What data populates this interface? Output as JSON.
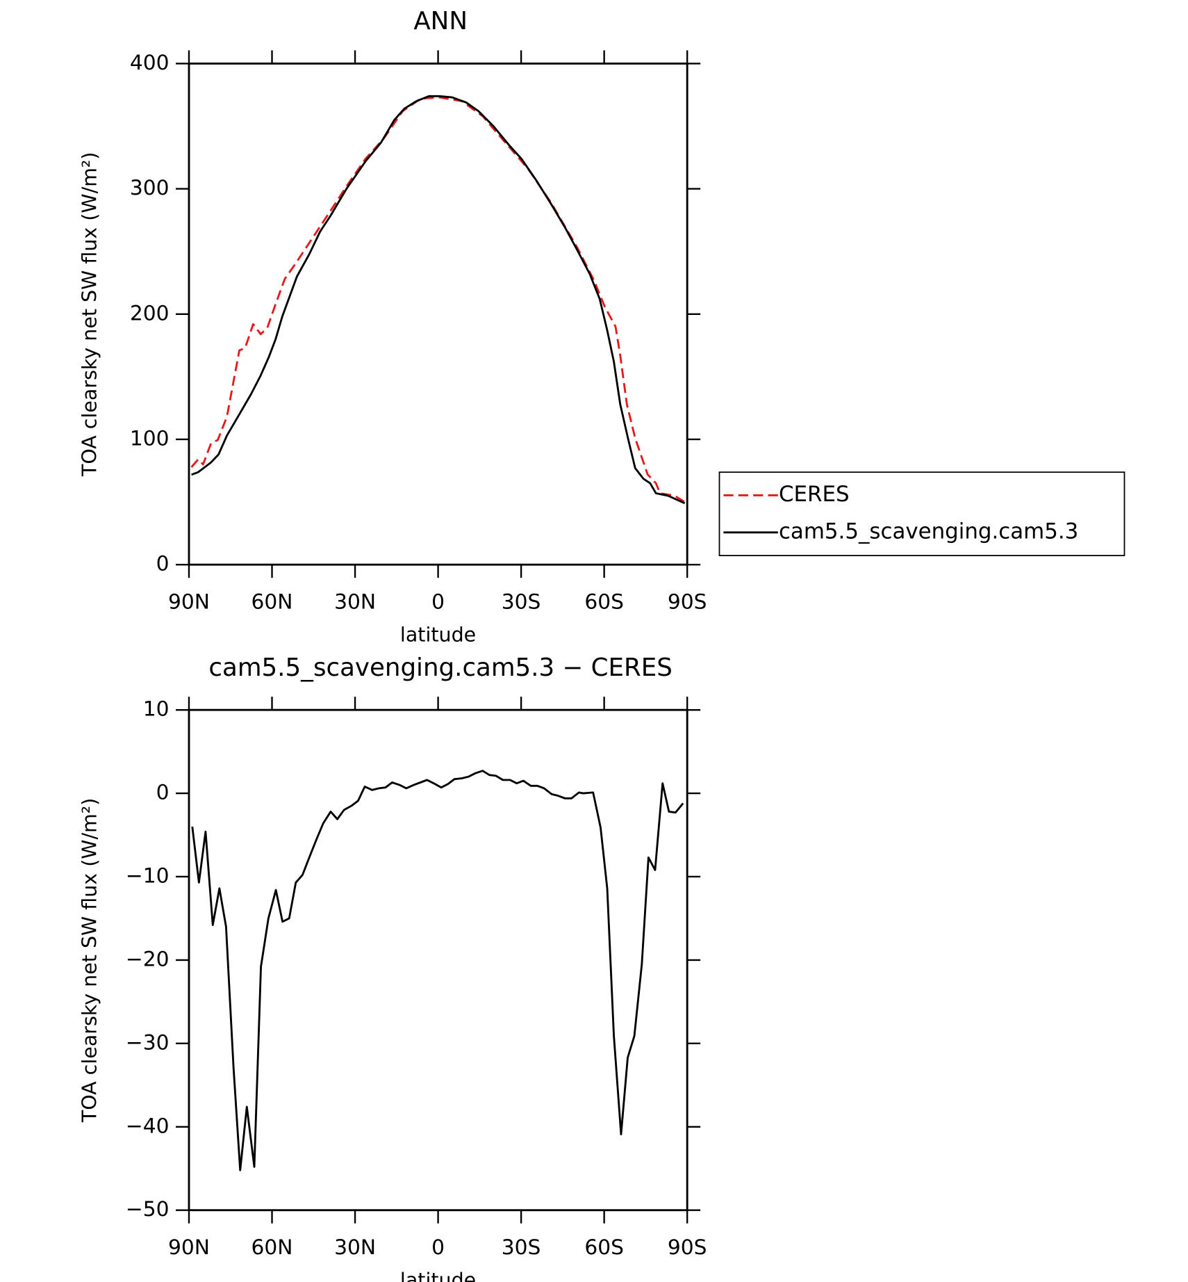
{
  "chart_data": [
    {
      "type": "line",
      "title": "ANN",
      "xlabel": "latitude",
      "ylabel": "TOA clearsky net SW flux (W/m²)",
      "xlim": [
        90,
        -90
      ],
      "xticks": [
        {
          "value": 90,
          "label": "90N"
        },
        {
          "value": 60,
          "label": "60N"
        },
        {
          "value": 30,
          "label": "30N"
        },
        0,
        {
          "value": -30,
          "label": "30S"
        },
        {
          "value": -60,
          "label": "60S"
        },
        {
          "value": -90,
          "label": "90S"
        }
      ],
      "ylim": [
        0,
        400
      ],
      "yticks": [
        0,
        100,
        200,
        300,
        400
      ],
      "legend": "right",
      "series": [
        {
          "name": "CERES",
          "color": "#e41a1c",
          "dash": "dashed",
          "x": [
            89.1,
            86.7,
            84.9,
            82.0,
            79.6,
            76.3,
            71.8,
            69.7,
            66.8,
            64.1,
            61.7,
            58.7,
            55.4,
            51.6,
            47.4,
            42.6,
            38.4,
            33.1,
            26.2,
            19.7,
            12.8,
            6.3,
            -0.6,
            -8.6,
            -16.1,
            -23.5,
            -32.5,
            -40.8,
            -50.3,
            -56.3,
            -60.2,
            -64.1,
            -65.8,
            -68.2,
            -71.2,
            -75.7,
            -78.7,
            -80.2,
            -85.5,
            -89.1
          ],
          "values": [
            77.8,
            84,
            80,
            97,
            99.5,
            118,
            171,
            173,
            192,
            184,
            189,
            208,
            228,
            240,
            254,
            270,
            284,
            302,
            324,
            340,
            362,
            372,
            373,
            370,
            358,
            339,
            316,
            289,
            253,
            227,
            206,
            190,
            167,
            128,
            101,
            72,
            65,
            57,
            55,
            50
          ]
        },
        {
          "name": "cam5.5_scavenging.cam5.3",
          "color": "#000000",
          "dash": "solid",
          "x": [
            89.1,
            86.7,
            84.3,
            82.0,
            79.3,
            76.3,
            71.8,
            67.6,
            64.1,
            61.1,
            58.7,
            56.3,
            51.0,
            46.5,
            42.6,
            39.0,
            33.1,
            26.2,
            20.6,
            15.8,
            12.2,
            7.8,
            3.3,
            -0.3,
            -5.1,
            -10.1,
            -14.6,
            -20.0,
            -25.6,
            -30.1,
            -35.4,
            -40.8,
            -45.9,
            -50.3,
            -54.8,
            -58.4,
            -61.1,
            -63.5,
            -65.8,
            -68.8,
            -71.2,
            -74.2,
            -76.6,
            -78.7,
            -83.1,
            -89.1
          ],
          "values": [
            71.8,
            73.8,
            77.8,
            81.7,
            88,
            103,
            120,
            136,
            151,
            166,
            180,
            198,
            230,
            248,
            266,
            278,
            300,
            322,
            337,
            355,
            364,
            370,
            374,
            374,
            373,
            369,
            362,
            350,
            335,
            324,
            307,
            288,
            269,
            251,
            232,
            212,
            187,
            162,
            128,
            99,
            77,
            68.5,
            65,
            57,
            55,
            49
          ]
        }
      ]
    },
    {
      "type": "line",
      "title": "cam5.5_scavenging.cam5.3 − CERES",
      "xlabel": "latitude",
      "ylabel": "TOA clearsky net SW flux (W/m²)",
      "xlim": [
        90,
        -90
      ],
      "xticks": [
        {
          "value": 90,
          "label": "90N"
        },
        {
          "value": 60,
          "label": "60N"
        },
        {
          "value": 30,
          "label": "30N"
        },
        0,
        {
          "value": -30,
          "label": "30S"
        },
        {
          "value": -60,
          "label": "60S"
        },
        {
          "value": -90,
          "label": "90S"
        }
      ],
      "ylim": [
        -50,
        10
      ],
      "yticks": [
        10,
        0,
        {
          "value": -10,
          "label": "−10"
        },
        {
          "value": -20,
          "label": "−20"
        },
        {
          "value": -30,
          "label": "−30"
        },
        {
          "value": -40,
          "label": "−40"
        },
        {
          "value": -50,
          "label": "−50"
        }
      ],
      "series": [
        {
          "color": "#000000",
          "dash": "solid",
          "x": [
            88.8,
            86.4,
            84.0,
            81.4,
            79.0,
            76.6,
            73.9,
            71.5,
            69.1,
            66.4,
            64.0,
            61.3,
            58.6,
            56.2,
            53.8,
            51.4,
            49.0,
            46.3,
            43.9,
            41.5,
            38.8,
            36.4,
            34.0,
            31.3,
            28.9,
            26.5,
            23.8,
            21.4,
            19.0,
            16.6,
            13.9,
            11.5,
            8.8,
            6.4,
            4.0,
            1.6,
            -1.1,
            -3.5,
            -5.9,
            -8.6,
            -11.0,
            -13.4,
            -16.1,
            -18.5,
            -20.9,
            -23.4,
            -26.0,
            -28.4,
            -30.8,
            -33.5,
            -35.9,
            -38.3,
            -41.0,
            -43.4,
            -45.8,
            -48.2,
            -50.9,
            -52.4,
            -56.0,
            -58.7,
            -61.1,
            -63.5,
            -66.1,
            -68.5,
            -70.9,
            -73.6,
            -76.0,
            -78.4,
            -81.1,
            -83.4,
            -85.8,
            -88.5
          ],
          "values": [
            -4.0,
            -10.7,
            -4.6,
            -15.8,
            -11.4,
            -16.0,
            -32.9,
            -45.2,
            -37.6,
            -44.8,
            -20.8,
            -15,
            -11.6,
            -15.4,
            -15,
            -10.7,
            -9.8,
            -7.5,
            -5.5,
            -3.6,
            -2.2,
            -3.1,
            -2.0,
            -1.5,
            -0.9,
            0.8,
            0.4,
            0.6,
            0.7,
            1.3,
            1.0,
            0.6,
            1.0,
            1.3,
            1.6,
            1.2,
            0.7,
            1.1,
            1.7,
            1.8,
            2.0,
            2.4,
            2.7,
            2.2,
            2.1,
            1.6,
            1.6,
            1.2,
            1.5,
            0.9,
            0.9,
            0.6,
            -0.1,
            -0.3,
            -0.6,
            -0.6,
            0.1,
            0.0,
            0.1,
            -4.1,
            -11.4,
            -29.1,
            -40.9,
            -31.7,
            -29.1,
            -20.5,
            -7.7,
            -9.2,
            1.2,
            -2.2,
            -2.3,
            -1.2
          ]
        }
      ]
    }
  ]
}
